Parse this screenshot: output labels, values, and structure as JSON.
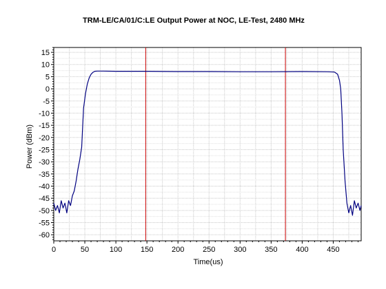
{
  "chart_data": {
    "type": "line",
    "title": "TRM-LE/CA/01/C:LE Output Power at NOC, LE-Test, 2480 MHz",
    "xlabel": "Time(us)",
    "ylabel": "Power (dBm)",
    "xlim": [
      0,
      495
    ],
    "ylim": [
      -62.5,
      17
    ],
    "xticks": [
      0,
      50,
      100,
      150,
      200,
      250,
      300,
      350,
      400,
      450
    ],
    "yticks": [
      15,
      10,
      5,
      0,
      -5,
      -10,
      -15,
      -20,
      -25,
      -30,
      -35,
      -40,
      -45,
      -50,
      -55,
      -60
    ],
    "grid": true,
    "legend": "none",
    "markers": [
      {
        "x": 148,
        "color": "#cc0000"
      },
      {
        "x": 373,
        "color": "#cc0000"
      }
    ],
    "series": [
      {
        "color": "#000080",
        "x": [
          0,
          3,
          6,
          9,
          12,
          15,
          18,
          21,
          24,
          27,
          30,
          33,
          36,
          39,
          42,
          45,
          48,
          51,
          54,
          57,
          60,
          63,
          66,
          70,
          80,
          100,
          150,
          200,
          250,
          300,
          350,
          400,
          440,
          452,
          457,
          460,
          462,
          464,
          466,
          469,
          472,
          475,
          478,
          481,
          484,
          487,
          490,
          493,
          495
        ],
        "y": [
          -47,
          -50,
          -48,
          -51,
          -46,
          -49,
          -47,
          -51,
          -46,
          -48,
          -44,
          -42,
          -38,
          -33,
          -29,
          -24,
          -8,
          -2,
          2,
          4.5,
          6,
          6.8,
          7.2,
          7.3,
          7.3,
          7.2,
          7.2,
          7.1,
          7.1,
          7.0,
          7.0,
          7.1,
          7.0,
          6.9,
          6.0,
          3.5,
          0,
          -10,
          -25,
          -38,
          -47,
          -51,
          -48,
          -52,
          -46,
          -49,
          -47,
          -50,
          -48
        ]
      }
    ]
  }
}
